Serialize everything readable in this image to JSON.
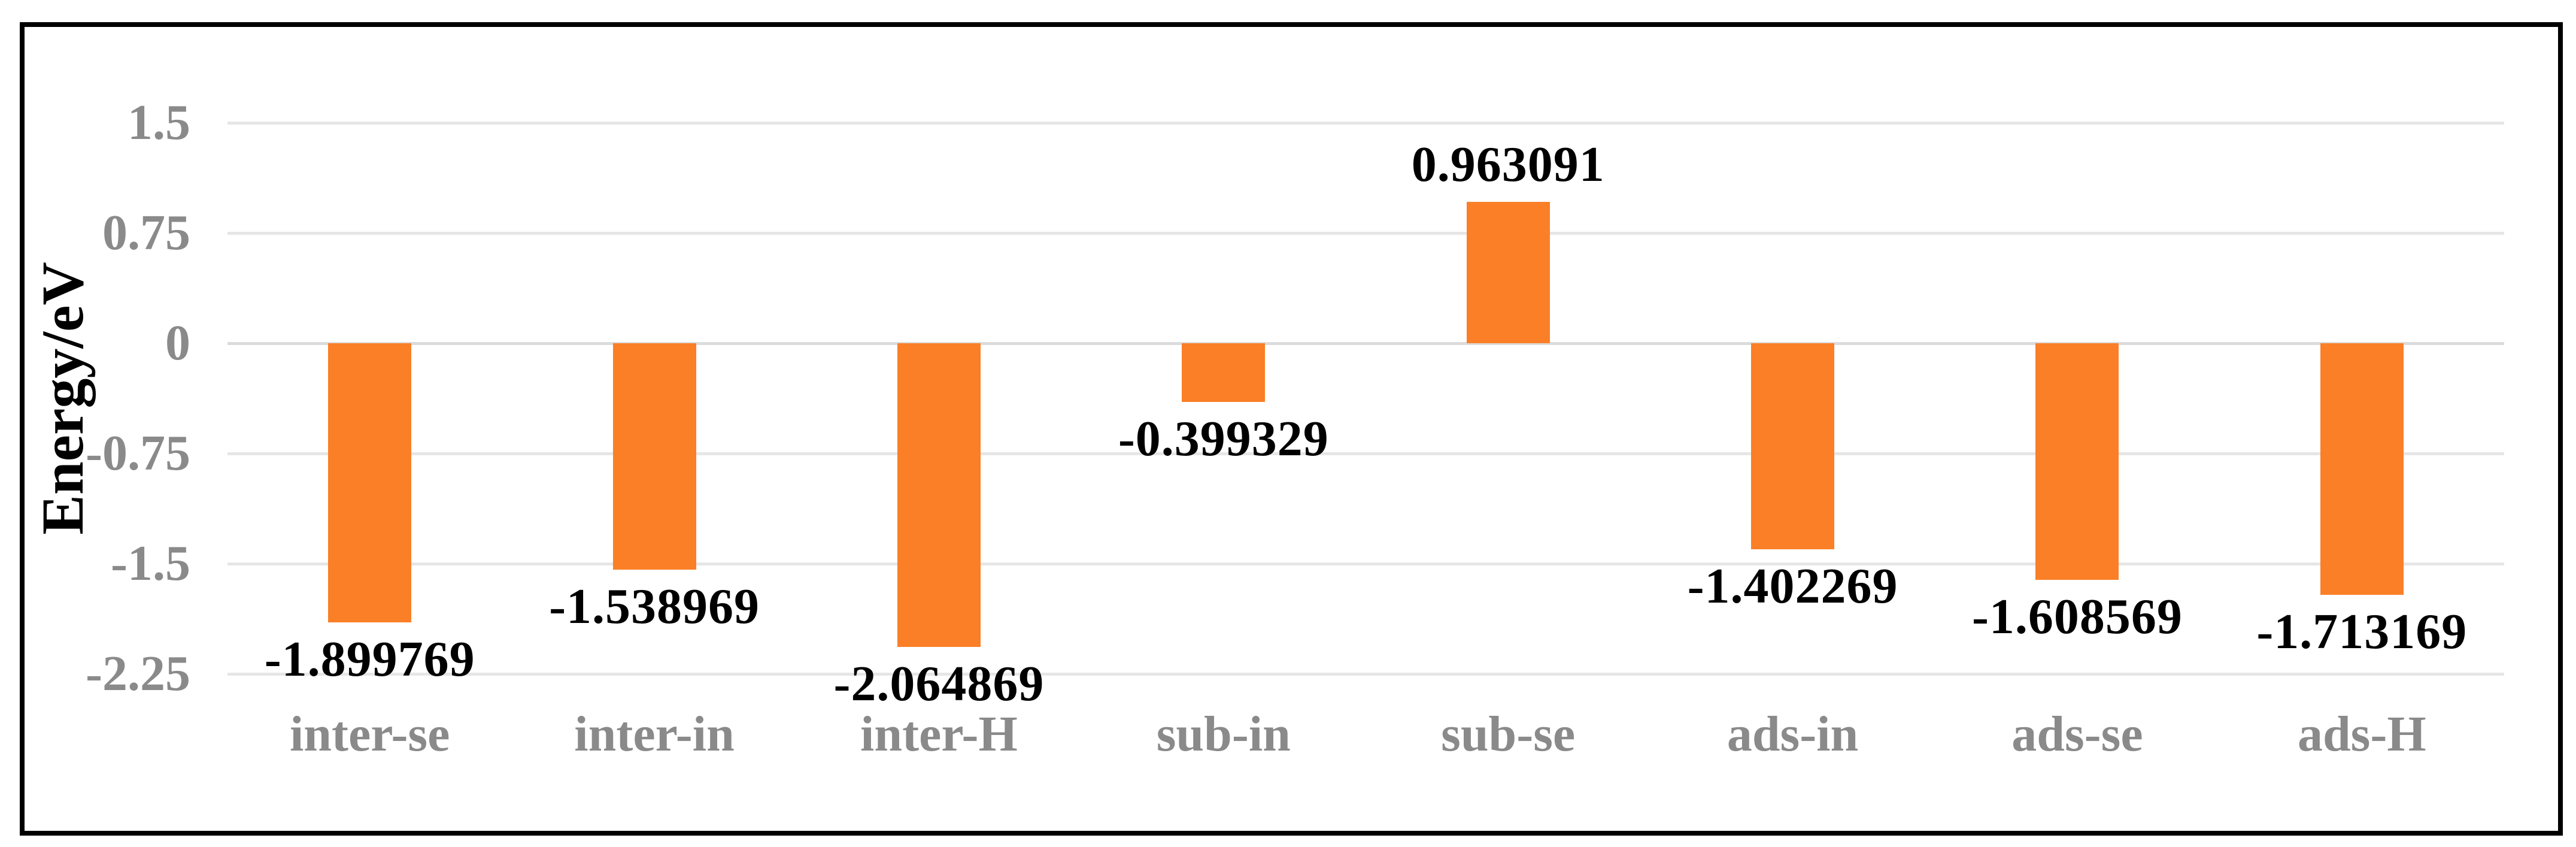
{
  "chart_data": {
    "type": "bar",
    "title": "",
    "categories": [
      "inter-se",
      "inter-in",
      "inter-H",
      "sub-in",
      "sub-se",
      "ads-in",
      "ads-se",
      "ads-H"
    ],
    "values": [
      -1.899769,
      -1.538969,
      -2.064869,
      -0.399329,
      0.963091,
      -1.402269,
      -1.608569,
      -1.713169
    ],
    "value_labels": [
      "-1.899769",
      "-1.538969",
      "-2.064869",
      "-0.399329",
      "0.963091",
      "-1.402269",
      "-1.608569",
      "-1.713169"
    ],
    "xlabel": "",
    "ylabel": "Energy/eV",
    "ylim": [
      -2.25,
      1.5
    ],
    "yticks": [
      1.5,
      0.75,
      0,
      -0.75,
      -1.5,
      -2.25
    ],
    "ytick_labels": [
      "1.5",
      "0.75",
      "0",
      "-0.75",
      "-1.5",
      "-2.25"
    ],
    "grid": true,
    "legend": false,
    "colors": {
      "bar": "#FA7F27",
      "gridline": "#E6E6E6",
      "zero_line": "#DCDCDC",
      "tick_text": "#8A8A8A",
      "category_text": "#8A8A8A",
      "value_text": "#000000",
      "axis_title_text": "#000000",
      "frame_border": "#000000",
      "background": "#FFFFFF"
    }
  }
}
